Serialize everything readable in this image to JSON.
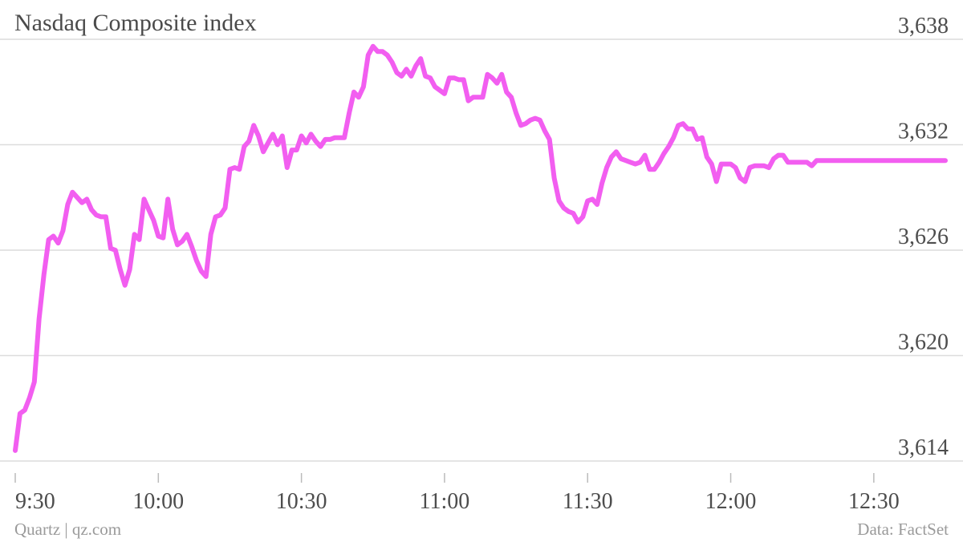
{
  "title": "Nasdaq Composite index",
  "source_left": "Quartz | qz.com",
  "source_right": "Data: FactSet",
  "colors": {
    "line": "#f25ef0",
    "grid": "#dcdcdc",
    "tick": "#bbbbbb",
    "text": "#4d4d4d"
  },
  "chart_data": {
    "type": "line",
    "title": "Nasdaq Composite index",
    "xlabel": "",
    "ylabel": "",
    "x_ticks": [
      "9:30",
      "10:00",
      "10:30",
      "11:00",
      "11:30",
      "12:00",
      "12:30"
    ],
    "y_ticks": [
      "3,614",
      "3,620",
      "3,626",
      "3,632",
      "3,638"
    ],
    "xlim": [
      0,
      195
    ],
    "ylim": [
      3614,
      3638
    ],
    "grid": true,
    "y_axis_side": "right",
    "series": [
      {
        "name": "",
        "points": [
          [
            0,
            3614.6
          ],
          [
            1,
            3616.7
          ],
          [
            2,
            3616.9
          ],
          [
            3,
            3617.6
          ],
          [
            4,
            3618.5
          ],
          [
            5,
            3622.1
          ],
          [
            6,
            3624.6
          ],
          [
            7,
            3626.6
          ],
          [
            8,
            3626.8
          ],
          [
            9,
            3626.4
          ],
          [
            10,
            3627.1
          ],
          [
            11,
            3628.6
          ],
          [
            12,
            3629.3
          ],
          [
            13,
            3629.0
          ],
          [
            14,
            3628.7
          ],
          [
            15,
            3628.9
          ],
          [
            16,
            3628.3
          ],
          [
            17,
            3628.0
          ],
          [
            18,
            3627.9
          ],
          [
            19,
            3627.9
          ],
          [
            20,
            3626.1
          ],
          [
            21,
            3626.0
          ],
          [
            22,
            3624.9
          ],
          [
            23,
            3624.0
          ],
          [
            24,
            3624.9
          ],
          [
            25,
            3626.9
          ],
          [
            26,
            3626.6
          ],
          [
            27,
            3628.9
          ],
          [
            28,
            3628.3
          ],
          [
            29,
            3627.7
          ],
          [
            30,
            3626.8
          ],
          [
            31,
            3626.7
          ],
          [
            32,
            3628.9
          ],
          [
            33,
            3627.2
          ],
          [
            34,
            3626.3
          ],
          [
            35,
            3626.5
          ],
          [
            36,
            3626.9
          ],
          [
            37,
            3626.2
          ],
          [
            38,
            3625.4
          ],
          [
            39,
            3624.8
          ],
          [
            40,
            3624.5
          ],
          [
            41,
            3626.9
          ],
          [
            42,
            3627.9
          ],
          [
            43,
            3628.0
          ],
          [
            44,
            3628.4
          ],
          [
            45,
            3630.6
          ],
          [
            46,
            3630.7
          ],
          [
            47,
            3630.6
          ],
          [
            48,
            3631.9
          ],
          [
            49,
            3632.2
          ],
          [
            50,
            3633.1
          ],
          [
            51,
            3632.5
          ],
          [
            52,
            3631.6
          ],
          [
            53,
            3632.1
          ],
          [
            54,
            3632.6
          ],
          [
            55,
            3632.0
          ],
          [
            56,
            3632.5
          ],
          [
            57,
            3630.7
          ],
          [
            58,
            3631.7
          ],
          [
            59,
            3631.7
          ],
          [
            60,
            3632.5
          ],
          [
            61,
            3632.1
          ],
          [
            62,
            3632.6
          ],
          [
            63,
            3632.2
          ],
          [
            64,
            3631.9
          ],
          [
            65,
            3632.3
          ],
          [
            66,
            3632.3
          ],
          [
            67,
            3632.4
          ],
          [
            68,
            3632.4
          ],
          [
            69,
            3632.4
          ],
          [
            70,
            3633.8
          ],
          [
            71,
            3635.0
          ],
          [
            72,
            3634.7
          ],
          [
            73,
            3635.3
          ],
          [
            74,
            3637.1
          ],
          [
            75,
            3637.6
          ],
          [
            76,
            3637.3
          ],
          [
            77,
            3637.3
          ],
          [
            78,
            3637.1
          ],
          [
            79,
            3636.7
          ],
          [
            80,
            3636.1
          ],
          [
            81,
            3635.9
          ],
          [
            82,
            3636.3
          ],
          [
            83,
            3635.9
          ],
          [
            84,
            3636.5
          ],
          [
            85,
            3636.9
          ],
          [
            86,
            3635.9
          ],
          [
            87,
            3635.8
          ],
          [
            88,
            3635.3
          ],
          [
            89,
            3635.1
          ],
          [
            90,
            3634.9
          ],
          [
            91,
            3635.8
          ],
          [
            92,
            3635.8
          ],
          [
            93,
            3635.7
          ],
          [
            94,
            3635.7
          ],
          [
            95,
            3634.5
          ],
          [
            96,
            3634.7
          ],
          [
            97,
            3634.7
          ],
          [
            98,
            3634.7
          ],
          [
            99,
            3636.0
          ],
          [
            100,
            3635.8
          ],
          [
            101,
            3635.5
          ],
          [
            102,
            3636.0
          ],
          [
            103,
            3635.0
          ],
          [
            104,
            3634.7
          ],
          [
            105,
            3633.8
          ],
          [
            106,
            3633.1
          ],
          [
            107,
            3633.2
          ],
          [
            108,
            3633.4
          ],
          [
            109,
            3633.5
          ],
          [
            110,
            3633.4
          ],
          [
            111,
            3632.8
          ],
          [
            112,
            3632.3
          ],
          [
            113,
            3630.1
          ],
          [
            114,
            3628.8
          ],
          [
            115,
            3628.4
          ],
          [
            116,
            3628.2
          ],
          [
            117,
            3628.1
          ],
          [
            118,
            3627.6
          ],
          [
            119,
            3627.9
          ],
          [
            120,
            3628.8
          ],
          [
            121,
            3628.9
          ],
          [
            122,
            3628.6
          ],
          [
            123,
            3629.8
          ],
          [
            124,
            3630.7
          ],
          [
            125,
            3631.3
          ],
          [
            126,
            3631.6
          ],
          [
            127,
            3631.2
          ],
          [
            128,
            3631.1
          ],
          [
            129,
            3631.0
          ],
          [
            130,
            3630.9
          ],
          [
            131,
            3631.0
          ],
          [
            132,
            3631.4
          ],
          [
            133,
            3630.6
          ],
          [
            134,
            3630.6
          ],
          [
            135,
            3631.0
          ],
          [
            136,
            3631.5
          ],
          [
            137,
            3631.9
          ],
          [
            138,
            3632.4
          ],
          [
            139,
            3633.1
          ],
          [
            140,
            3633.2
          ],
          [
            141,
            3632.9
          ],
          [
            142,
            3632.9
          ],
          [
            143,
            3632.3
          ],
          [
            144,
            3632.4
          ],
          [
            145,
            3631.3
          ],
          [
            146,
            3630.9
          ],
          [
            147,
            3629.9
          ],
          [
            148,
            3630.9
          ],
          [
            149,
            3630.9
          ],
          [
            150,
            3630.9
          ],
          [
            151,
            3630.7
          ],
          [
            152,
            3630.1
          ],
          [
            153,
            3629.9
          ],
          [
            154,
            3630.7
          ],
          [
            155,
            3630.8
          ],
          [
            156,
            3630.8
          ],
          [
            157,
            3630.8
          ],
          [
            158,
            3630.7
          ],
          [
            159,
            3631.2
          ],
          [
            160,
            3631.4
          ],
          [
            161,
            3631.4
          ],
          [
            162,
            3631.0
          ],
          [
            163,
            3631.0
          ],
          [
            164,
            3631.0
          ],
          [
            165,
            3631.0
          ],
          [
            166,
            3631.0
          ],
          [
            167,
            3630.8
          ],
          [
            168,
            3631.1
          ],
          [
            169,
            3631.1
          ],
          [
            195,
            3631.1
          ]
        ]
      }
    ]
  }
}
